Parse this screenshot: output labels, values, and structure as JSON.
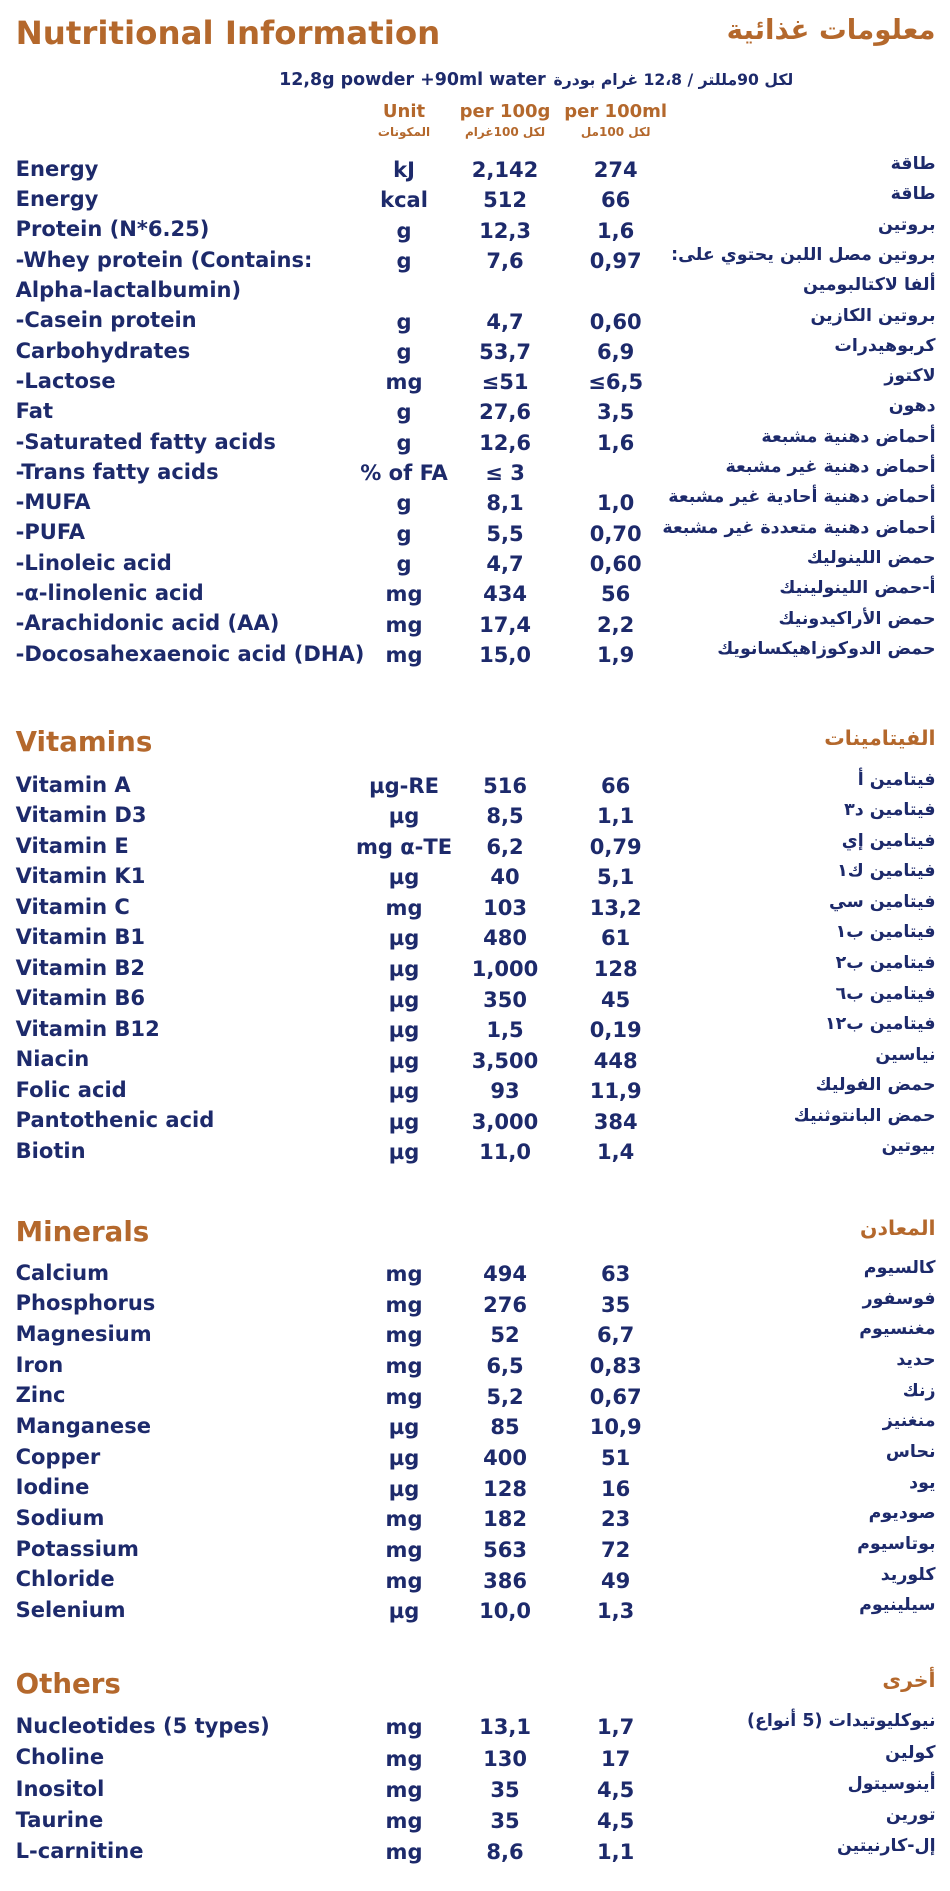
{
  "header": {
    "title": "Nutritional Information",
    "title_ar": "معلومات غذائية",
    "serving": "12,8g powder +90ml water",
    "serving_ar": "لكل 90مللتر / 12،8 غرام بودرة"
  },
  "columns": [
    {
      "label": "Unit",
      "label_ar": "المكونات"
    },
    {
      "label": "per 100g",
      "label_ar": "لكل 100غرام"
    },
    {
      "label": "per 100ml",
      "label_ar": "لكل 100مل"
    }
  ],
  "sections": [
    {
      "rows": [
        [
          "Energy",
          "kJ",
          "2,142",
          "274",
          "طاقة"
        ],
        [
          "Energy",
          "kcal",
          "512",
          "66",
          "طاقة"
        ],
        [
          "Protein (N*6.25)",
          "g",
          "12,3",
          "1,6",
          "بروتين"
        ],
        [
          [
            "-Whey protein (Contains:",
            "Alpha-lactalbumin)"
          ],
          "g",
          "7,6",
          "0,97",
          [
            "بروتين مصل اللبن يحتوي على:",
            "ألفا لاكتالبومين"
          ]
        ],
        [
          "-Casein protein",
          "g",
          "4,7",
          "0,60",
          "بروتين الكازين"
        ],
        [
          "Carbohydrates",
          "g",
          "53,7",
          "6,9",
          "كربوهيدرات"
        ],
        [
          "-Lactose",
          "mg",
          "≤51",
          "≤6,5",
          "لاكتوز"
        ],
        [
          "Fat",
          "g",
          "27,6",
          "3,5",
          "دهون"
        ],
        [
          "-Saturated fatty acids",
          "g",
          "12,6",
          "1,6",
          "أحماض دهنية مشبعة"
        ],
        [
          "-Trans fatty acids",
          "% of FA",
          "≤ 3",
          null,
          "أحماض دهنية غير مشبعة"
        ],
        [
          "-MUFA",
          "g",
          "8,1",
          "1,0",
          "أحماض دهنية أحادية غير مشبعة"
        ],
        [
          "-PUFA",
          "g",
          "5,5",
          "0,70",
          "أحماض دهنية متعددة غير مشبعة"
        ],
        [
          "-Linoleic acid",
          "g",
          "4,7",
          "0,60",
          "حمض اللينوليك"
        ],
        [
          "-α-linolenic acid",
          "mg",
          "434",
          "56",
          "أ-حمض اللينولينيك"
        ],
        [
          "-Arachidonic acid (AA)",
          "mg",
          "17,4",
          "2,2",
          "حمض الأراكيدونيك"
        ],
        [
          "-Docosahexaenoic acid (DHA)",
          "mg",
          "15,0",
          "1,9",
          "حمض الدوكوزاهيكسانويك"
        ]
      ]
    },
    {
      "title": "Vitamins",
      "title_ar": "الفيتامينات",
      "rows": [
        [
          "Vitamin A",
          "µg-RE",
          "516",
          "66",
          "فيتامين أ"
        ],
        [
          "Vitamin D3",
          "µg",
          "8,5",
          "1,1",
          "فيتامين د٣"
        ],
        [
          "Vitamin E",
          "mg α-TE",
          "6,2",
          "0,79",
          "فيتامين إي"
        ],
        [
          "Vitamin K1",
          "µg",
          "40",
          "5,1",
          "فيتامين ك١"
        ],
        [
          "Vitamin C",
          "mg",
          "103",
          "13,2",
          "فيتامين سي"
        ],
        [
          "Vitamin B1",
          "µg",
          "480",
          "61",
          "فيتامين ب١"
        ],
        [
          "Vitamin B2",
          "µg",
          "1,000",
          "128",
          "فيتامين ب٢"
        ],
        [
          "Vitamin B6",
          "µg",
          "350",
          "45",
          "فيتامين ب٦"
        ],
        [
          "Vitamin B12",
          "µg",
          "1,5",
          "0,19",
          "فيتامين ب١٢"
        ],
        [
          "Niacin",
          "µg",
          "3,500",
          "448",
          "نياسين"
        ],
        [
          "Folic acid",
          "µg",
          "93",
          "11,9",
          "حمض الفوليك"
        ],
        [
          "Pantothenic acid",
          "µg",
          "3,000",
          "384",
          "حمض البانتوثنيك"
        ],
        [
          "Biotin",
          "µg",
          "11,0",
          "1,4",
          "بيوتين"
        ]
      ]
    },
    {
      "title": "Minerals",
      "title_ar": "المعادن",
      "rows": [
        [
          "Calcium",
          "mg",
          "494",
          "63",
          "كالسيوم"
        ],
        [
          "Phosphorus",
          "mg",
          "276",
          "35",
          "فوسفور"
        ],
        [
          "Magnesium",
          "mg",
          "52",
          "6,7",
          "مغنسيوم"
        ],
        [
          "Iron",
          "mg",
          "6,5",
          "0,83",
          "حديد"
        ],
        [
          "Zinc",
          "mg",
          "5,2",
          "0,67",
          "زنك"
        ],
        [
          "Manganese",
          "µg",
          "85",
          "10,9",
          "منغنيز"
        ],
        [
          "Copper",
          "µg",
          "400",
          "51",
          "نحاس"
        ],
        [
          "Iodine",
          "µg",
          "128",
          "16",
          "يود"
        ],
        [
          "Sodium",
          "mg",
          "182",
          "23",
          "صوديوم"
        ],
        [
          "Potassium",
          "mg",
          "563",
          "72",
          "بوتاسيوم"
        ],
        [
          "Chloride",
          "mg",
          "386",
          "49",
          "كلوريد"
        ],
        [
          "Selenium",
          "µg",
          "10,0",
          "1,3",
          "سيلينيوم"
        ]
      ]
    },
    {
      "title": "Others",
      "title_ar": "أخرى",
      "rows": [
        [
          "Nucleotides (5 types)",
          "mg",
          "13,1",
          "1,7",
          "نيوكليوتيدات (5 أنواع)"
        ],
        [
          "Choline",
          "mg",
          "130",
          "17",
          "كولين"
        ],
        [
          "Inositol",
          "mg",
          "35",
          "4,5",
          "أينوسيتول"
        ],
        [
          "Taurine",
          "mg",
          "35",
          "4,5",
          "تورين"
        ],
        [
          "L-carnitine",
          "mg",
          "8,6",
          "1,1",
          "إل-كارنيتين"
        ]
      ]
    }
  ]
}
